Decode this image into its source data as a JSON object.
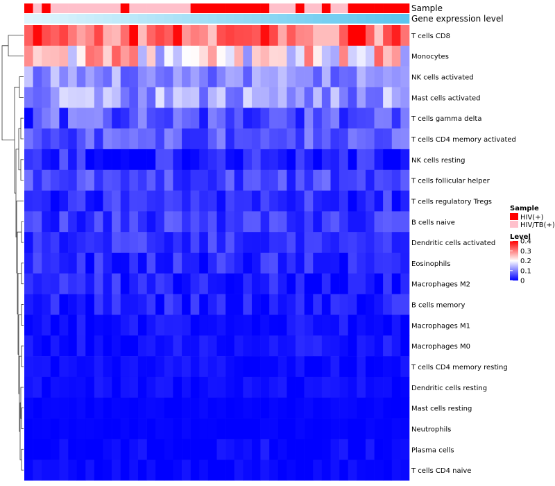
{
  "chart_data": {
    "type": "heatmap",
    "title": "",
    "annotation_labels": [
      "Sample",
      "Gene expression level"
    ],
    "rows": [
      "T cells CD8",
      "Monocytes",
      "NK cells activated",
      "Mast cells activated",
      "T cells gamma delta",
      "T cells CD4 memory activated",
      "NK cells resting",
      "T cells follicular helper",
      "T cells regulatory  Tregs",
      "B cells naive",
      "Dendritic cells activated",
      "Eosinophils",
      "Macrophages M2",
      "B cells memory",
      "Macrophages M1",
      "Macrophages M0",
      "T cells CD4 memory resting",
      "Dendritic cells resting",
      "Mast cells resting",
      "Neutrophils",
      "Plasma cells",
      "T cells CD4 naive"
    ],
    "n_samples": 44,
    "sample_groups": [
      "HIV(+)",
      "HIV/TB(+)",
      "HIV(+)",
      "HIV/TB(+)",
      "HIV/TB(+)",
      "HIV/TB(+)",
      "HIV/TB(+)",
      "HIV/TB(+)",
      "HIV/TB(+)",
      "HIV/TB(+)",
      "HIV/TB(+)",
      "HIV(+)",
      "HIV/TB(+)",
      "HIV/TB(+)",
      "HIV/TB(+)",
      "HIV/TB(+)",
      "HIV/TB(+)",
      "HIV/TB(+)",
      "HIV/TB(+)",
      "HIV(+)",
      "HIV(+)",
      "HIV(+)",
      "HIV(+)",
      "HIV(+)",
      "HIV(+)",
      "HIV(+)",
      "HIV(+)",
      "HIV(+)",
      "HIV/TB(+)",
      "HIV/TB(+)",
      "HIV/TB(+)",
      "HIV(+)",
      "HIV/TB(+)",
      "HIV/TB(+)",
      "HIV(+)",
      "HIV/TB(+)",
      "HIV/TB(+)",
      "HIV(+)",
      "HIV(+)",
      "HIV(+)",
      "HIV(+)",
      "HIV(+)",
      "HIV(+)",
      "HIV(+)"
    ],
    "row_means": [
      0.32,
      0.22,
      0.11,
      0.12,
      0.06,
      0.07,
      0.03,
      0.055,
      0.035,
      0.045,
      0.04,
      0.03,
      0.025,
      0.02,
      0.012,
      0.015,
      0.01,
      0.008,
      0.003,
      0.002,
      0.006,
      0.004
    ],
    "row_spread": [
      0.09,
      0.11,
      0.05,
      0.06,
      0.06,
      0.04,
      0.04,
      0.035,
      0.035,
      0.035,
      0.03,
      0.035,
      0.035,
      0.035,
      0.02,
      0.02,
      0.015,
      0.015,
      0.005,
      0.004,
      0.02,
      0.012
    ],
    "color_scale": {
      "min": 0,
      "max": 0.4,
      "colors": [
        "#0000FF",
        "#FFFFFF",
        "#FF0000"
      ],
      "midpoint": 0.2
    },
    "legend": {
      "sample_title": "Sample",
      "sample_items": [
        {
          "label": "HIV(+)",
          "color": "#FF0000"
        },
        {
          "label": "HIV/TB(+)",
          "color": "#FFC0CB"
        }
      ],
      "level_title": "Level",
      "level_ticks": [
        "0.4",
        "0.3",
        "0.2",
        "0.1",
        "0"
      ],
      "level_values": [
        0.4,
        0.3,
        0.2,
        0.1,
        0
      ],
      "position": "right"
    },
    "gene_expression_gradient": [
      "#E0F5FD",
      "#5BC5EE"
    ],
    "dendrogram": "rows"
  }
}
